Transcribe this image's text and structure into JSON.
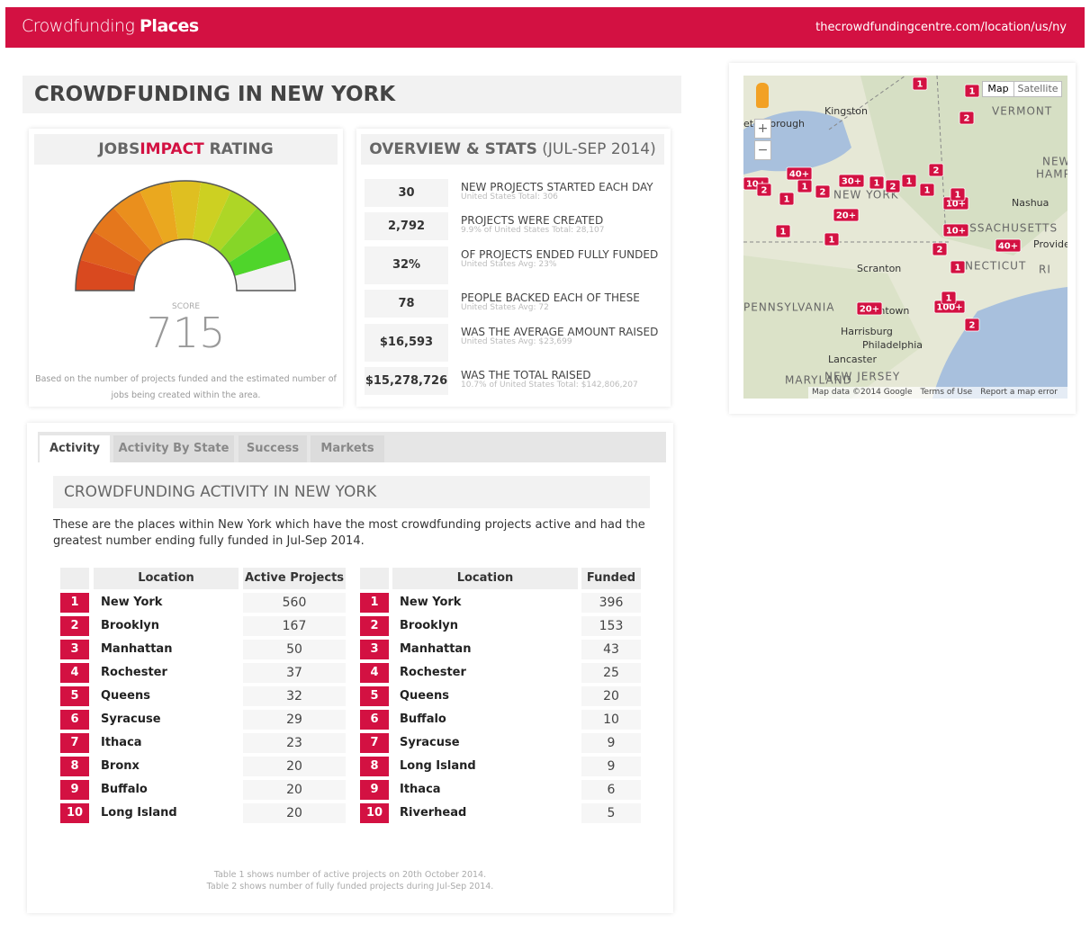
{
  "header": {
    "brand_light": "Crowdfunding",
    "brand_bold": "Places",
    "url": "thecrowdfundingcentre.com/location/us/ny"
  },
  "page_title": "CROWDFUNDING IN NEW YORK",
  "jobs_impact": {
    "title_a": "JOBS",
    "title_b": "IMPACT",
    "title_c": "RATING",
    "score_label": "SCORE",
    "score": 715,
    "note": "Based on the number of projects funded and the estimated number of jobs being created within the area."
  },
  "overview": {
    "title": "OVERVIEW & STATS",
    "period": "(JUL-SEP 2014)",
    "stats": [
      {
        "value": "30",
        "label": "NEW PROJECTS STARTED EACH DAY",
        "sub": "United States Total: 306"
      },
      {
        "value": "2,792",
        "label": "PROJECTS WERE CREATED",
        "sub": "9.9% of United States Total: 28,107"
      },
      {
        "value": "32%",
        "label": "OF PROJECTS ENDED FULLY FUNDED",
        "sub": "United States Avg: 23%"
      },
      {
        "value": "78",
        "label": "PEOPLE BACKED EACH OF THESE",
        "sub": "United States Avg: 72"
      },
      {
        "value": "$16,593",
        "label": "WAS THE AVERAGE AMOUNT RAISED",
        "sub": "United States Avg: $23,699"
      },
      {
        "value": "$15,278,726",
        "label": "WAS THE TOTAL RAISED",
        "sub": "10.7% of United States Total: $142,806,207"
      }
    ]
  },
  "map": {
    "buttons": [
      "Map",
      "Satellite"
    ],
    "zoom": [
      "+",
      "−"
    ],
    "places": [
      "Kingston",
      "VERMONT",
      "NEW",
      "HAMPSHI",
      "Nashua",
      "ASSACHUSETTS",
      "Providen",
      "NNECTICUT",
      "RI",
      "Scranton",
      "PENNSYLVANIA",
      "Allentown",
      "Harrisburg",
      "Philadelphia",
      "Lancaster",
      "MARYLAND",
      "NEW JERSEY",
      "NEW YORK",
      "eterborough"
    ],
    "markers": [
      "40+",
      "30+",
      "20+",
      "10+",
      "100+",
      "10+",
      "20+",
      "10+",
      "40+",
      "2",
      "1",
      "1",
      "2",
      "1",
      "2",
      "1",
      "1",
      "2",
      "1",
      "1",
      "1",
      "2",
      "1",
      "1",
      "2",
      "1",
      "1",
      "2"
    ],
    "footer": [
      "Map data ©2014 Google",
      "Terms of Use",
      "Report a map error"
    ]
  },
  "tabs": [
    "Activity",
    "Activity By State",
    "Success",
    "Markets"
  ],
  "activity": {
    "title": "CROWDFUNDING ACTIVITY IN NEW YORK",
    "description": "These are the places within New York which have the most crowdfunding projects active and had the greatest number ending fully funded in Jul-Sep 2014.",
    "tables": [
      {
        "headers": [
          "Location",
          "Active Projects"
        ],
        "rows": [
          [
            1,
            "New York",
            560
          ],
          [
            2,
            "Brooklyn",
            167
          ],
          [
            3,
            "Manhattan",
            50
          ],
          [
            4,
            "Rochester",
            37
          ],
          [
            5,
            "Queens",
            32
          ],
          [
            6,
            "Syracuse",
            29
          ],
          [
            7,
            "Ithaca",
            23
          ],
          [
            8,
            "Bronx",
            20
          ],
          [
            9,
            "Buffalo",
            20
          ],
          [
            10,
            "Long Island",
            20
          ]
        ]
      },
      {
        "headers": [
          "Location",
          "Funded"
        ],
        "rows": [
          [
            1,
            "New York",
            396
          ],
          [
            2,
            "Brooklyn",
            153
          ],
          [
            3,
            "Manhattan",
            43
          ],
          [
            4,
            "Rochester",
            25
          ],
          [
            5,
            "Queens",
            20
          ],
          [
            6,
            "Buffalo",
            10
          ],
          [
            7,
            "Syracuse",
            9
          ],
          [
            8,
            "Long Island",
            9
          ],
          [
            9,
            "Ithaca",
            6
          ],
          [
            10,
            "Riverhead",
            5
          ]
        ]
      }
    ],
    "footnotes": [
      "Table 1 shows number of active projects on 20th October 2014.",
      "Table 2 shows number of fully funded projects during Jul-Sep 2014."
    ]
  }
}
